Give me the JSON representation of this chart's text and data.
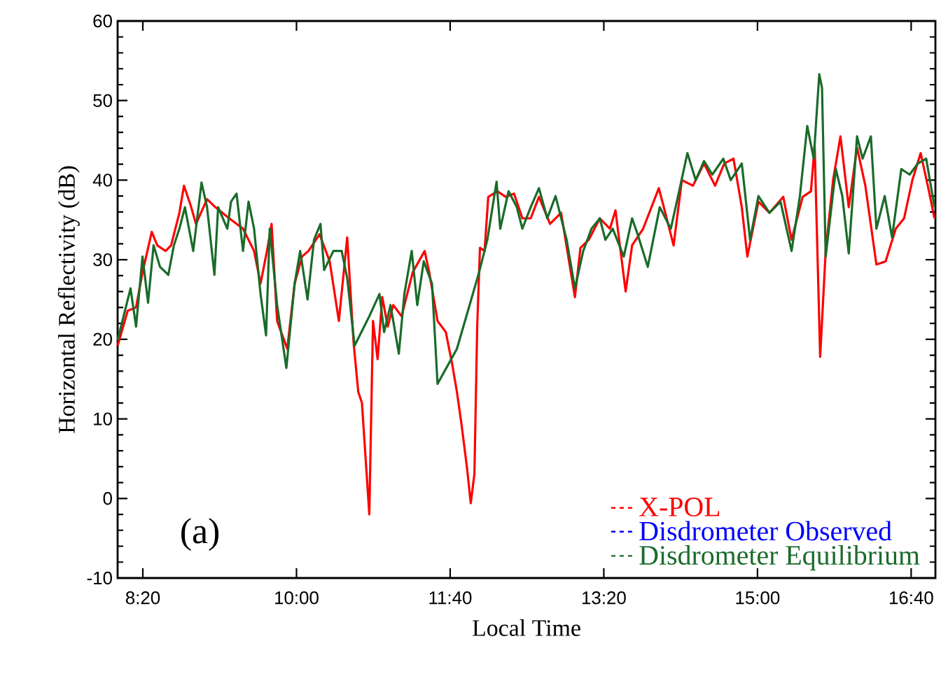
{
  "chart_data": {
    "type": "line",
    "xlabel": "Local Time",
    "ylabel": "Horizontal Reflectivity (dB)",
    "xlim": [
      8.06,
      16.93
    ],
    "ylim": [
      -10,
      60
    ],
    "xticks": [
      {
        "value": 8.3333,
        "label": "8:20"
      },
      {
        "value": 10,
        "label": "10:00"
      },
      {
        "value": 11.6667,
        "label": "11:40"
      },
      {
        "value": 13.3333,
        "label": "13:20"
      },
      {
        "value": 15,
        "label": "15:00"
      },
      {
        "value": 16.6667,
        "label": "16:40"
      }
    ],
    "yticks": [
      -10,
      0,
      10,
      20,
      30,
      40,
      50,
      60
    ],
    "legend": "bottom right",
    "grid": false,
    "marker": "none",
    "line_style": "solid",
    "annotations": [
      "(a)"
    ],
    "series": [
      {
        "name": "X-POL",
        "color": "#ff0000",
        "x": [
          8.06,
          8.17,
          8.26,
          8.33,
          8.43,
          8.49,
          8.58,
          8.64,
          8.73,
          8.78,
          8.85,
          8.91,
          9.03,
          9.12,
          9.27,
          9.42,
          9.54,
          9.61,
          9.68,
          9.73,
          9.79,
          9.9,
          9.98,
          10.06,
          10.13,
          10.25,
          10.36,
          10.46,
          10.55,
          10.62,
          10.67,
          10.71,
          10.79,
          10.83,
          10.88,
          10.93,
          10.99,
          11.05,
          11.14,
          11.26,
          11.39,
          11.44,
          11.53,
          11.62,
          11.69,
          11.74,
          11.79,
          11.85,
          11.89,
          11.93,
          11.96,
          11.99,
          12.04,
          12.08,
          12.18,
          12.27,
          12.36,
          12.45,
          12.54,
          12.63,
          12.75,
          12.87,
          13.02,
          13.08,
          13.17,
          13.29,
          13.4,
          13.46,
          13.57,
          13.64,
          13.76,
          13.93,
          14.0,
          14.09,
          14.18,
          14.3,
          14.42,
          14.54,
          14.64,
          14.74,
          14.83,
          14.89,
          15.01,
          15.13,
          15.28,
          15.37,
          15.49,
          15.58,
          15.62,
          15.68,
          15.74,
          15.82,
          15.9,
          15.99,
          16.08,
          16.17,
          16.29,
          16.39,
          16.5,
          16.59,
          16.68,
          16.77,
          16.86,
          16.92
        ],
        "values": [
          19.2,
          23.6,
          24.0,
          28.4,
          33.5,
          31.8,
          31.1,
          31.8,
          35.9,
          39.3,
          36.9,
          34.5,
          37.6,
          36.6,
          35.2,
          33.9,
          31.1,
          27.0,
          31.1,
          34.5,
          22.3,
          18.8,
          27.0,
          30.4,
          31.1,
          33.2,
          29.8,
          22.3,
          32.8,
          19.5,
          13.4,
          12.0,
          -2.0,
          22.3,
          17.5,
          25.3,
          21.6,
          24.3,
          22.9,
          28.4,
          31.1,
          28.4,
          22.3,
          20.9,
          16.8,
          13.4,
          9.3,
          3.8,
          -0.6,
          3.1,
          21.6,
          31.5,
          31.1,
          37.9,
          38.6,
          37.9,
          38.3,
          35.2,
          35.2,
          37.9,
          34.5,
          35.9,
          25.3,
          31.5,
          32.5,
          35.2,
          33.9,
          36.2,
          26.0,
          31.8,
          33.9,
          39.0,
          35.9,
          31.8,
          40.0,
          39.3,
          42.1,
          39.3,
          42.1,
          42.7,
          36.6,
          30.4,
          37.3,
          35.9,
          37.9,
          32.5,
          37.9,
          38.6,
          44.4,
          17.8,
          31.1,
          40.0,
          45.5,
          36.6,
          44.1,
          39.3,
          29.4,
          29.8,
          33.9,
          35.2,
          40.0,
          43.4,
          38.6,
          35.2
        ]
      },
      {
        "name": "Disdrometer Observed",
        "color": "#0000ff"
      },
      {
        "name": "Disdrometer Equilibrium",
        "color": "#1a6b2a",
        "x": [
          8.06,
          8.2,
          8.26,
          8.33,
          8.39,
          8.45,
          8.52,
          8.61,
          8.67,
          8.73,
          8.79,
          8.88,
          8.97,
          9.03,
          9.11,
          9.15,
          9.25,
          9.29,
          9.35,
          9.42,
          9.48,
          9.54,
          9.61,
          9.67,
          9.71,
          9.79,
          9.89,
          9.98,
          10.04,
          10.12,
          10.19,
          10.26,
          10.3,
          10.4,
          10.49,
          10.55,
          10.63,
          10.79,
          10.9,
          10.95,
          11.02,
          11.11,
          11.17,
          11.25,
          11.31,
          11.38,
          11.47,
          11.53,
          11.74,
          11.98,
          12.07,
          12.17,
          12.21,
          12.3,
          12.39,
          12.45,
          12.54,
          12.63,
          12.72,
          12.81,
          12.93,
          13.02,
          13.11,
          13.2,
          13.29,
          13.35,
          13.43,
          13.55,
          13.64,
          13.7,
          13.81,
          13.94,
          14.06,
          14.15,
          14.24,
          14.33,
          14.42,
          14.51,
          14.63,
          14.71,
          14.83,
          14.92,
          15.01,
          15.13,
          15.25,
          15.37,
          15.46,
          15.54,
          15.61,
          15.67,
          15.7,
          15.74,
          15.85,
          15.92,
          15.99,
          16.08,
          16.14,
          16.23,
          16.29,
          16.38,
          16.46,
          16.56,
          16.65,
          16.74,
          16.83,
          16.92
        ],
        "values": [
          19.9,
          26.4,
          21.6,
          30.4,
          24.6,
          31.8,
          29.1,
          28.1,
          31.8,
          33.9,
          36.6,
          31.1,
          39.7,
          36.6,
          28.1,
          36.6,
          33.9,
          37.3,
          38.3,
          31.1,
          37.3,
          33.9,
          25.7,
          20.5,
          33.9,
          24.3,
          16.4,
          27.0,
          31.1,
          25.0,
          32.5,
          34.5,
          28.7,
          31.1,
          31.1,
          27.7,
          19.2,
          22.9,
          25.7,
          20.9,
          24.3,
          18.2,
          25.7,
          31.1,
          24.3,
          29.8,
          27.0,
          14.4,
          18.8,
          28.4,
          32.5,
          39.8,
          33.9,
          38.6,
          36.6,
          33.9,
          36.6,
          39.0,
          35.2,
          38.0,
          32.5,
          26.4,
          31.1,
          33.9,
          35.2,
          32.5,
          33.9,
          30.4,
          35.2,
          33.2,
          29.1,
          36.6,
          33.9,
          38.6,
          43.4,
          40.0,
          42.4,
          40.7,
          42.7,
          40.0,
          42.1,
          32.5,
          38.0,
          35.9,
          37.3,
          31.1,
          38.0,
          46.8,
          42.7,
          53.3,
          51.6,
          30.4,
          41.4,
          38.0,
          30.8,
          45.5,
          42.7,
          45.5,
          33.9,
          38.0,
          32.8,
          41.4,
          40.7,
          42.1,
          42.7,
          36.6
        ]
      }
    ]
  }
}
